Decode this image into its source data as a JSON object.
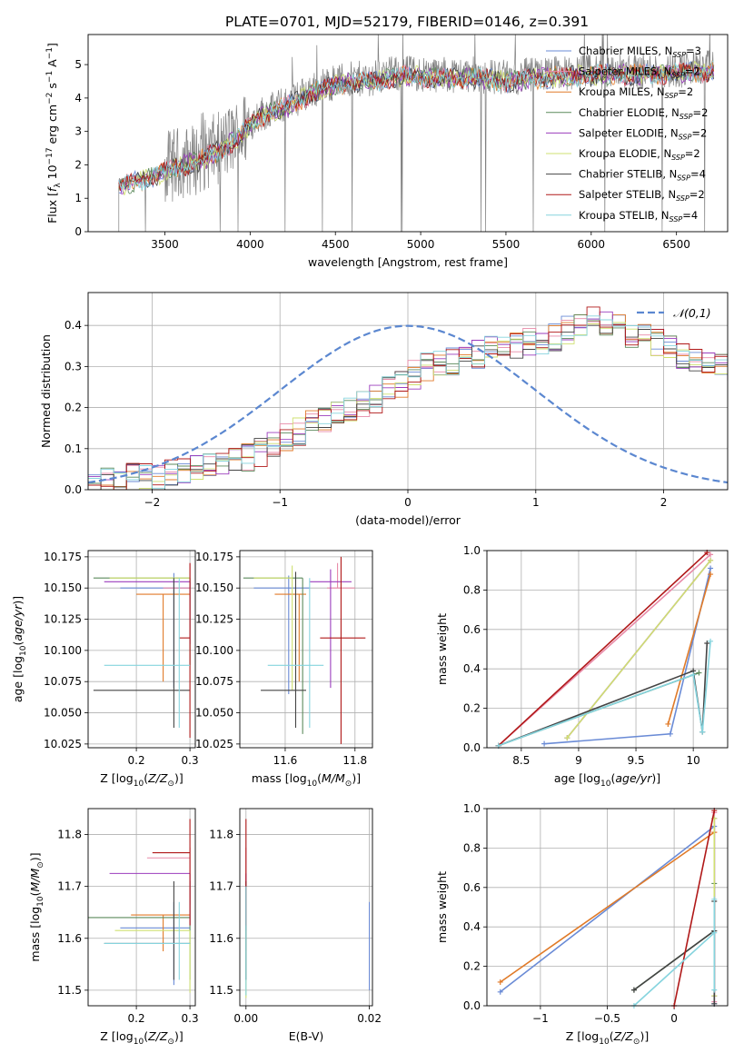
{
  "figure_title": "PLATE=0701, MJD=52179, FIBERID=0146, z=0.391",
  "series_colors": [
    "#6a8bd6",
    "#e88aa8",
    "#e07a28",
    "#5c8a5c",
    "#9b3dbd",
    "#cfe070",
    "#444444",
    "#b01818",
    "#86d4de"
  ],
  "chart_data": [
    {
      "id": "spectrum",
      "type": "line",
      "title": "PLATE=0701, MJD=52179, FIBERID=0146, z=0.391",
      "xlabel": "wavelength [Angstrom, rest frame]",
      "ylabel": "Flux [f_λ 10^-17 erg cm^-2 s^-1 A^-1]",
      "xlim": [
        3050,
        6800
      ],
      "ylim": [
        0,
        5.9
      ],
      "xticks": [
        3500,
        4000,
        4500,
        5000,
        5500,
        6000,
        6500
      ],
      "yticks": [
        0,
        1,
        2,
        3,
        4,
        5
      ],
      "grid": false,
      "legend_position": "top-right",
      "legend": [
        {
          "label": "Chabrier MILES, N",
          "sub": "SSP",
          "suffix": "=3"
        },
        {
          "label": "Salpeter MILES, N",
          "sub": "SSP",
          "suffix": "=2"
        },
        {
          "label": "Kroupa MILES, N",
          "sub": "SSP",
          "suffix": "=2"
        },
        {
          "label": "Chabrier ELODIE, N",
          "sub": "SSP",
          "suffix": "=2"
        },
        {
          "label": "Salpeter ELODIE, N",
          "sub": "SSP",
          "suffix": "=2"
        },
        {
          "label": "Kroupa ELODIE, N",
          "sub": "SSP",
          "suffix": "=2"
        },
        {
          "label": "Chabrier STELIB, N",
          "sub": "SSP",
          "suffix": "=4"
        },
        {
          "label": "Salpeter STELIB, N",
          "sub": "SSP",
          "suffix": "=2"
        },
        {
          "label": "Kroupa STELIB, N",
          "sub": "SSP",
          "suffix": "=4"
        }
      ],
      "data_color": "#808080",
      "data_wave_range": [
        3230,
        6720
      ],
      "continuum_shape": [
        [
          3230,
          1.45
        ],
        [
          3400,
          1.7
        ],
        [
          3550,
          2.0
        ],
        [
          3700,
          2.2
        ],
        [
          3850,
          2.6
        ],
        [
          3950,
          3.0
        ],
        [
          4050,
          3.5
        ],
        [
          4200,
          3.8
        ],
        [
          4350,
          4.2
        ],
        [
          4500,
          4.5
        ],
        [
          4700,
          4.6
        ],
        [
          4900,
          4.75
        ],
        [
          5100,
          4.7
        ],
        [
          5300,
          4.7
        ],
        [
          5500,
          4.6
        ],
        [
          5700,
          4.7
        ],
        [
          5900,
          4.75
        ],
        [
          6100,
          4.8
        ],
        [
          6300,
          4.8
        ],
        [
          6500,
          4.85
        ],
        [
          6720,
          4.9
        ]
      ]
    },
    {
      "id": "residuals",
      "type": "histogram",
      "xlabel": "(data-model)/error",
      "ylabel": "Normed distribution",
      "xlim": [
        -2.5,
        2.5
      ],
      "ylim": [
        0,
        0.48
      ],
      "xticks": [
        -2,
        -1,
        0,
        1,
        2
      ],
      "yticks": [
        0.0,
        0.1,
        0.2,
        0.3,
        0.4
      ],
      "grid": true,
      "legend_position": "top-right",
      "reference_curve": {
        "label": "𝒩(0,1)",
        "mean": 0,
        "sigma": 1,
        "style": "dashed",
        "color": "#5b87d0"
      },
      "bin_width": 0.1,
      "bin_start": -2.5,
      "base_values": [
        0.01,
        0.02,
        0.02,
        0.03,
        0.03,
        0.03,
        0.04,
        0.05,
        0.05,
        0.06,
        0.07,
        0.08,
        0.08,
        0.09,
        0.11,
        0.13,
        0.14,
        0.16,
        0.17,
        0.18,
        0.19,
        0.21,
        0.22,
        0.24,
        0.26,
        0.28,
        0.3,
        0.31,
        0.31,
        0.32,
        0.33,
        0.34,
        0.34,
        0.35,
        0.36,
        0.36,
        0.37,
        0.39,
        0.41,
        0.42,
        0.41,
        0.4,
        0.38,
        0.37,
        0.36,
        0.34,
        0.33,
        0.32,
        0.31,
        0.3,
        0.28,
        0.27,
        0.26,
        0.25,
        0.23,
        0.22,
        0.21,
        0.19,
        0.17,
        0.16,
        0.15,
        0.13,
        0.12,
        0.11,
        0.1,
        0.09,
        0.08,
        0.07,
        0.06,
        0.05
      ]
    },
    {
      "id": "age-vs-Z",
      "type": "errorbar",
      "xlabel": "Z [log10(Z/Z☉)]",
      "ylabel": "age  [log10(age/yr)]",
      "xlim": [
        0.11,
        0.31
      ],
      "ylim": [
        10.022,
        10.18
      ],
      "xticks": [
        0.2,
        0.3
      ],
      "yticks": [
        10.025,
        10.05,
        10.075,
        10.1,
        10.125,
        10.15,
        10.175
      ],
      "ytick_labels": [
        "10.025",
        "10.050",
        "10.075",
        "10.100",
        "10.125",
        "10.150",
        "10.175"
      ],
      "grid": true,
      "points": [
        {
          "x": 0.27,
          "y": 10.15,
          "xerr": [
            0.1,
            0.03
          ],
          "yerr": [
            0.08,
            0.012
          ]
        },
        {
          "x": 0.3,
          "y": 10.15,
          "xerr": [
            0.05,
            0.0
          ],
          "yerr": [
            0.0,
            0.02
          ]
        },
        {
          "x": 0.25,
          "y": 10.145,
          "xerr": [
            0.05,
            0.05
          ],
          "yerr": [
            0.07,
            0.0
          ]
        },
        {
          "x": 0.3,
          "y": 10.158,
          "xerr": [
            0.18,
            0.0
          ],
          "yerr": [
            0.07,
            0.0
          ]
        },
        {
          "x": 0.3,
          "y": 10.155,
          "xerr": [
            0.16,
            0.0
          ],
          "yerr": [
            0.05,
            0.0
          ]
        },
        {
          "x": 0.3,
          "y": 10.158,
          "xerr": [
            0.15,
            0.0
          ],
          "yerr": [
            0.0,
            0.0
          ]
        },
        {
          "x": 0.27,
          "y": 10.068,
          "xerr": [
            0.15,
            0.03
          ],
          "yerr": [
            0.03,
            0.09
          ]
        },
        {
          "x": 0.3,
          "y": 10.11,
          "xerr": [
            0.02,
            0.0
          ],
          "yerr": [
            0.08,
            0.06
          ]
        },
        {
          "x": 0.28,
          "y": 10.088,
          "xerr": [
            0.14,
            0.02
          ],
          "yerr": [
            0.05,
            0.07
          ]
        }
      ]
    },
    {
      "id": "age-vs-mass",
      "type": "errorbar",
      "xlabel": "mass [log10(M/M☉)]",
      "ylabel": "",
      "xlim": [
        11.47,
        11.85
      ],
      "ylim": [
        10.022,
        10.18
      ],
      "xticks": [
        11.6,
        11.8
      ],
      "yticks": [
        10.025,
        10.05,
        10.075,
        10.1,
        10.125,
        10.15,
        10.175
      ],
      "ytick_labels": [
        "10.025",
        "10.050",
        "10.075",
        "10.100",
        "10.125",
        "10.150",
        "10.175"
      ],
      "grid": true,
      "points": [
        {
          "x": 11.61,
          "y": 10.15,
          "xerr": [
            0.1,
            0.06
          ],
          "yerr": [
            0.085,
            0.01
          ]
        },
        {
          "x": 11.75,
          "y": 10.15,
          "xerr": [
            0.03,
            0.05
          ],
          "yerr": [
            0.0,
            0.02
          ]
        },
        {
          "x": 11.64,
          "y": 10.145,
          "xerr": [
            0.07,
            0.02
          ],
          "yerr": [
            0.07,
            0.0
          ]
        },
        {
          "x": 11.65,
          "y": 10.158,
          "xerr": [
            0.17,
            0.0
          ],
          "yerr": [
            0.125,
            0.0
          ]
        },
        {
          "x": 11.73,
          "y": 10.155,
          "xerr": [
            0.06,
            0.06
          ],
          "yerr": [
            0.085,
            0.01
          ]
        },
        {
          "x": 11.62,
          "y": 10.158,
          "xerr": [
            0.11,
            0.0
          ],
          "yerr": [
            0.09,
            0.01
          ]
        },
        {
          "x": 11.63,
          "y": 10.068,
          "xerr": [
            0.1,
            0.03
          ],
          "yerr": [
            0.03,
            0.095
          ]
        },
        {
          "x": 11.76,
          "y": 10.11,
          "xerr": [
            0.06,
            0.07
          ],
          "yerr": [
            0.085,
            0.065
          ]
        },
        {
          "x": 11.67,
          "y": 10.088,
          "xerr": [
            0.12,
            0.04
          ],
          "yerr": [
            0.05,
            0.07
          ]
        }
      ]
    },
    {
      "id": "weight-vs-age",
      "type": "line",
      "xlabel": "age  [log10(age/yr)]",
      "ylabel": "mass weight",
      "xlim": [
        8.2,
        10.3
      ],
      "ylim": [
        0.0,
        1.0
      ],
      "xticks": [
        8.5,
        9.0,
        9.5,
        10.0
      ],
      "yticks": [
        0.0,
        0.2,
        0.4,
        0.6,
        0.8,
        1.0
      ],
      "grid": true,
      "series": [
        {
          "x": [
            8.7,
            9.8,
            10.15
          ],
          "y": [
            0.02,
            0.07,
            0.91
          ]
        },
        {
          "x": [
            8.3,
            10.15
          ],
          "y": [
            0.01,
            0.98
          ]
        },
        {
          "x": [
            9.78,
            10.15
          ],
          "y": [
            0.12,
            0.88
          ]
        },
        {
          "x": [
            8.3,
            10.05
          ],
          "y": [
            0.01,
            0.38
          ]
        },
        {
          "x": [
            8.9,
            10.15
          ],
          "y": [
            0.05,
            0.95
          ]
        },
        {
          "x": [
            8.9,
            10.15
          ],
          "y": [
            0.05,
            0.95
          ]
        },
        {
          "x": [
            8.3,
            10.0,
            10.08,
            10.12
          ],
          "y": [
            0.01,
            0.39,
            0.08,
            0.53
          ]
        },
        {
          "x": [
            8.3,
            10.12
          ],
          "y": [
            0.01,
            0.99
          ]
        },
        {
          "x": [
            8.3,
            10.0,
            10.08,
            10.15
          ],
          "y": [
            0.01,
            0.37,
            0.08,
            0.54
          ]
        }
      ]
    },
    {
      "id": "mass-vs-Z",
      "type": "errorbar",
      "xlabel": "Z [log10(Z/Z☉)]",
      "ylabel": "mass [log10(M/M☉)]",
      "xlim": [
        0.11,
        0.31
      ],
      "ylim": [
        11.47,
        11.85
      ],
      "xticks": [
        0.2,
        0.3
      ],
      "yticks": [
        11.5,
        11.6,
        11.7,
        11.8
      ],
      "grid": true,
      "points": [
        {
          "x": 0.27,
          "y": 11.62,
          "xerr": [
            0.1,
            0.03
          ],
          "yerr": [
            0.11,
            0.05
          ]
        },
        {
          "x": 0.3,
          "y": 11.755,
          "xerr": [
            0.08,
            0.0
          ],
          "yerr": [
            0.09,
            0.02
          ]
        },
        {
          "x": 0.25,
          "y": 11.645,
          "xerr": [
            0.06,
            0.05
          ],
          "yerr": [
            0.07,
            0.0
          ]
        },
        {
          "x": 0.3,
          "y": 11.64,
          "xerr": [
            0.19,
            0.0
          ],
          "yerr": [
            0.12,
            0.07
          ]
        },
        {
          "x": 0.3,
          "y": 11.725,
          "xerr": [
            0.15,
            0.0
          ],
          "yerr": [
            0.1,
            0.0
          ]
        },
        {
          "x": 0.3,
          "y": 11.615,
          "xerr": [
            0.14,
            0.0
          ],
          "yerr": [
            0.12,
            0.0
          ]
        },
        {
          "x": 0.27,
          "y": 11.59,
          "xerr": [
            0.13,
            0.03
          ],
          "yerr": [
            0.07,
            0.12
          ]
        },
        {
          "x": 0.3,
          "y": 11.765,
          "xerr": [
            0.07,
            0.0
          ],
          "yerr": [
            0.14,
            0.065
          ]
        },
        {
          "x": 0.28,
          "y": 11.59,
          "xerr": [
            0.14,
            0.02
          ],
          "yerr": [
            0.07,
            0.08
          ]
        }
      ]
    },
    {
      "id": "mass-vs-EBV",
      "type": "errorbar",
      "xlabel": "E(B-V)",
      "ylabel": "",
      "xlim": [
        -0.001,
        0.0205
      ],
      "ylim": [
        11.47,
        11.85
      ],
      "xticks": [
        0.0,
        0.02
      ],
      "xtick_labels": [
        "0.00",
        "0.02"
      ],
      "yticks": [
        11.5,
        11.6,
        11.7,
        11.8
      ],
      "grid": true,
      "points": [
        {
          "x": 0.02,
          "y": 11.6,
          "xerr": [
            0,
            0
          ],
          "yerr": [
            0.1,
            0.07
          ]
        },
        {
          "x": 0.0,
          "y": 11.755,
          "xerr": [
            0,
            0
          ],
          "yerr": [
            0.09,
            0.02
          ]
        },
        {
          "x": 0.0,
          "y": 11.645,
          "xerr": [
            0,
            0
          ],
          "yerr": [
            0.07,
            0.0
          ]
        },
        {
          "x": 0.0,
          "y": 11.64,
          "xerr": [
            0,
            0
          ],
          "yerr": [
            0.12,
            0.07
          ]
        },
        {
          "x": 0.0,
          "y": 11.725,
          "xerr": [
            0,
            0
          ],
          "yerr": [
            0.1,
            0.0
          ]
        },
        {
          "x": 0.0,
          "y": 11.615,
          "xerr": [
            0,
            0
          ],
          "yerr": [
            0.13,
            0.0
          ]
        },
        {
          "x": 0.0,
          "y": 11.59,
          "xerr": [
            0,
            0
          ],
          "yerr": [
            0.07,
            0.12
          ]
        },
        {
          "x": 0.0,
          "y": 11.765,
          "xerr": [
            0,
            0
          ],
          "yerr": [
            0.14,
            0.065
          ]
        },
        {
          "x": 0.0,
          "y": 11.59,
          "xerr": [
            0,
            0
          ],
          "yerr": [
            0.1,
            0.11
          ]
        }
      ]
    },
    {
      "id": "weight-vs-Z",
      "type": "line",
      "xlabel": "Z [log10(Z/Z☉)]",
      "ylabel": "mass weight",
      "xlim": [
        -1.4,
        0.4
      ],
      "ylim": [
        0.0,
        1.0
      ],
      "xticks": [
        -1.0,
        -0.5,
        0.0
      ],
      "yticks": [
        0.0,
        0.2,
        0.4,
        0.6,
        0.8,
        1.0
      ],
      "grid": true,
      "series": [
        {
          "x": [
            -1.3,
            0.3,
            0.3
          ],
          "y": [
            0.07,
            0.91,
            0.01
          ]
        },
        {
          "x": [
            0.3,
            0.3
          ],
          "y": [
            0.98,
            0.02
          ]
        },
        {
          "x": [
            -1.3,
            0.3,
            0.3
          ],
          "y": [
            0.12,
            0.88,
            0.88
          ]
        },
        {
          "x": [
            -0.3,
            0.3,
            0.3
          ],
          "y": [
            0.08,
            0.38,
            0.62
          ]
        },
        {
          "x": [
            0.3,
            0.3
          ],
          "y": [
            0.95,
            0.05
          ]
        },
        {
          "x": [
            0.3,
            0.3
          ],
          "y": [
            0.95,
            0.05
          ]
        },
        {
          "x": [
            -0.3,
            0.3,
            0.3,
            0.3
          ],
          "y": [
            0.08,
            0.38,
            0.53,
            0.01
          ]
        },
        {
          "x": [
            0.0,
            0.3
          ],
          "y": [
            0.0,
            0.99
          ]
        },
        {
          "x": [
            -0.3,
            0.3,
            0.3,
            0.3
          ],
          "y": [
            0.0,
            0.37,
            0.54,
            0.08
          ]
        }
      ]
    }
  ]
}
